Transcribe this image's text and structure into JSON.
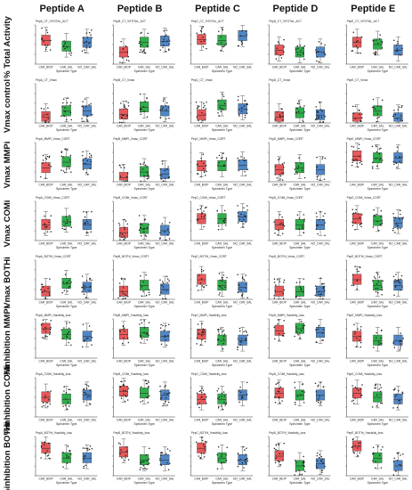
{
  "columns": [
    "Peptide A",
    "Peptide B",
    "Peptide C",
    "Peptide D",
    "Peptide E"
  ],
  "rows": [
    "% Total Activity",
    "Vmax control",
    "Vmax MMPi",
    "Vmax COMi",
    "Vmax BOTHi",
    "%inhibition MMPi",
    "%inhibition COMi",
    "%inhibition BOTHi"
  ],
  "x_axis_title": "Specimen Type",
  "group_labels": [
    "CAR_BIOP",
    "CAR_SAL",
    "NO_CAR_SAL"
  ],
  "group_colors": [
    "#e8585a",
    "#2fae4a",
    "#4f86c6"
  ],
  "panel_titles": [
    [
      "PepA_CT_%TOTAL_ACT",
      "PepB_CT_%TOTAL_ACT",
      "PepC_CT_%TOTAL_ACT",
      "PepD_CT_%TOTAL_ACT",
      "PepE_CT_%TOTAL_ACT"
    ],
    [
      "PepA_CT_Vmax",
      "PepB_CT_Vmax",
      "PepC_CT_Vmax",
      "PepD_CT_Vmax",
      "PepE_CT_Vmax"
    ],
    [
      "PepA_MMPi_Vmax_CORT",
      "PepB_MMPi_Vmax_CORT",
      "PepC_MMPi_Vmax_CORT",
      "PepD_MMPi_Vmax_CORT",
      "PepE_MMPi_Vmax_CORT"
    ],
    [
      "PepA_COMi_Vmax_CORT",
      "PepB_COMi_Vmax_CORT",
      "PepC_COMi_Vmax_CORT",
      "PepD_COMi_Vmax_CORT",
      "PepE_COMi_Vmax_CORT"
    ],
    [
      "PepA_BOTHi_Vmax_CORT",
      "PepB_BOTHi_Vmax_CORT",
      "PepC_BOTHi_Vmax_CORT",
      "PepD_BOTHi_Vmax_CORT",
      "PepE_BOTHi_Vmax_CORT"
    ],
    [
      "PepA_MMPi_%activity_loss",
      "PepB_MMPi_%activity_loss",
      "PepC_MMPi_%activity_loss",
      "PepD_MMPi_%activity_loss",
      "PepE_MMPi_%activity_loss"
    ],
    [
      "PepA_COMi_%activity_loss",
      "PepB_COMi_%activity_loss",
      "PepC_COMi_%activity_loss",
      "PepD_COMi_%activity_loss",
      "PepE_COMi_%activity_loss"
    ],
    [
      "PepA_BOTHi_%activity_loss",
      "PepB_BOTHi_%activity_loss",
      "PepC_BOTHi_%activity_loss",
      "PepD_BOTHi_%activity_loss",
      "PepE_BOTHi_%activity_loss"
    ]
  ],
  "chart_data": {
    "type": "boxplot-grid",
    "x_categories": [
      "CAR_BIOP",
      "CAR_SAL",
      "NO_CAR_SAL"
    ],
    "xlabel": "Specimen Type",
    "panels": [
      [
        [
          0.6,
          0.45,
          0.55
        ],
        [
          0.3,
          0.55,
          0.58
        ],
        [
          0.62,
          0.6,
          0.72
        ],
        [
          0.35,
          0.3,
          0.3
        ],
        [
          0.55,
          0.5,
          0.35
        ]
      ],
      [
        [
          0.15,
          0.3,
          0.3
        ],
        [
          0.22,
          0.4,
          0.3
        ],
        [
          0.2,
          0.45,
          0.35
        ],
        [
          0.15,
          0.25,
          0.2
        ],
        [
          0.12,
          0.3,
          0.12
        ]
      ],
      [
        [
          0.35,
          0.5,
          0.45
        ],
        [
          0.1,
          0.25,
          0.2
        ],
        [
          0.4,
          0.4,
          0.42
        ],
        [
          0.3,
          0.35,
          0.3
        ],
        [
          0.65,
          0.6,
          0.6
        ]
      ],
      [
        [
          0.4,
          0.48,
          0.4
        ],
        [
          0.2,
          0.3,
          0.25
        ],
        [
          0.55,
          0.55,
          0.6
        ],
        [
          0.4,
          0.4,
          0.4
        ],
        [
          0.55,
          0.5,
          0.45
        ]
      ],
      [
        [
          0.2,
          0.4,
          0.3
        ],
        [
          0.2,
          0.35,
          0.25
        ],
        [
          0.5,
          0.35,
          0.3
        ],
        [
          0.2,
          0.2,
          0.2
        ],
        [
          0.5,
          0.35,
          0.35
        ]
      ],
      [
        [
          0.75,
          0.6,
          0.55
        ],
        [
          0.6,
          0.65,
          0.55
        ],
        [
          0.6,
          0.45,
          0.45
        ],
        [
          0.7,
          0.75,
          0.65
        ],
        [
          0.55,
          0.45,
          0.45
        ]
      ],
      [
        [
          0.5,
          0.45,
          0.55
        ],
        [
          0.65,
          0.6,
          0.55
        ],
        [
          0.45,
          0.45,
          0.55
        ],
        [
          0.6,
          0.55,
          0.55
        ],
        [
          0.6,
          0.5,
          0.45
        ]
      ],
      [
        [
          0.7,
          0.45,
          0.45
        ],
        [
          0.6,
          0.4,
          0.4
        ],
        [
          0.7,
          0.45,
          0.4
        ],
        [
          0.5,
          0.25,
          0.3
        ],
        [
          0.75,
          0.45,
          0.25
        ]
      ]
    ]
  }
}
